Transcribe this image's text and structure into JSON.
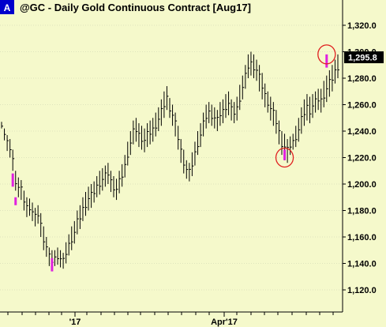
{
  "symbol_badge": "A",
  "chart_data": {
    "type": "ohlc",
    "title": "@GC - Daily  Gold Continuous Contract [Aug17]",
    "xlabels": [
      "'17",
      "Apr'17"
    ],
    "ylim": [
      1105,
      1330
    ],
    "yticks": [
      1120,
      1140,
      1160,
      1180,
      1200,
      1220,
      1240,
      1260,
      1280,
      1300,
      1320
    ],
    "ytick_labels": [
      "1,120.0",
      "1,140.0",
      "1,160.0",
      "1,180.0",
      "1,200.0",
      "1,220.0",
      "1,240.0",
      "1,260.0",
      "1,280.0",
      "1,300.0",
      "1,320.0"
    ],
    "last_price": 1295.8,
    "last_price_label": "1,295.8",
    "series": [
      {
        "points": [
          [
            1242,
            1247
          ],
          [
            1233,
            1242
          ],
          [
            1225,
            1237
          ],
          [
            1220,
            1234
          ],
          [
            1210,
            1226
          ],
          [
            1195,
            1210
          ],
          [
            1190,
            1205
          ],
          [
            1188,
            1203
          ],
          [
            1180,
            1195
          ],
          [
            1175,
            1190
          ],
          [
            1176,
            1189
          ],
          [
            1172,
            1186
          ],
          [
            1168,
            1182
          ],
          [
            1170,
            1184
          ],
          [
            1160,
            1178
          ],
          [
            1150,
            1168
          ],
          [
            1145,
            1160
          ],
          [
            1138,
            1152
          ],
          [
            1134,
            1150
          ],
          [
            1138,
            1150
          ],
          [
            1139,
            1152
          ],
          [
            1137,
            1150
          ],
          [
            1136,
            1148
          ],
          [
            1140,
            1156
          ],
          [
            1146,
            1162
          ],
          [
            1150,
            1168
          ],
          [
            1155,
            1172
          ],
          [
            1162,
            1180
          ],
          [
            1166,
            1184
          ],
          [
            1172,
            1190
          ],
          [
            1176,
            1194
          ],
          [
            1180,
            1198
          ],
          [
            1182,
            1200
          ],
          [
            1186,
            1202
          ],
          [
            1190,
            1206
          ],
          [
            1192,
            1210
          ],
          [
            1195,
            1212
          ],
          [
            1198,
            1214
          ],
          [
            1200,
            1216
          ],
          [
            1194,
            1210
          ],
          [
            1190,
            1206
          ],
          [
            1188,
            1204
          ],
          [
            1193,
            1210
          ],
          [
            1198,
            1215
          ],
          [
            1205,
            1222
          ],
          [
            1214,
            1232
          ],
          [
            1222,
            1240
          ],
          [
            1230,
            1248
          ],
          [
            1232,
            1250
          ],
          [
            1228,
            1246
          ],
          [
            1226,
            1244
          ],
          [
            1224,
            1242
          ],
          [
            1228,
            1246
          ],
          [
            1230,
            1248
          ],
          [
            1232,
            1250
          ],
          [
            1236,
            1254
          ],
          [
            1240,
            1258
          ],
          [
            1244,
            1264
          ],
          [
            1250,
            1270
          ],
          [
            1256,
            1274
          ],
          [
            1250,
            1265
          ],
          [
            1244,
            1260
          ],
          [
            1236,
            1254
          ],
          [
            1226,
            1244
          ],
          [
            1216,
            1234
          ],
          [
            1208,
            1226
          ],
          [
            1204,
            1218
          ],
          [
            1202,
            1216
          ],
          [
            1206,
            1224
          ],
          [
            1214,
            1232
          ],
          [
            1222,
            1240
          ],
          [
            1228,
            1246
          ],
          [
            1236,
            1254
          ],
          [
            1242,
            1260
          ],
          [
            1246,
            1262
          ],
          [
            1244,
            1260
          ],
          [
            1242,
            1258
          ],
          [
            1240,
            1256
          ],
          [
            1244,
            1262
          ],
          [
            1246,
            1264
          ],
          [
            1250,
            1268
          ],
          [
            1252,
            1270
          ],
          [
            1248,
            1264
          ],
          [
            1246,
            1262
          ],
          [
            1248,
            1266
          ],
          [
            1256,
            1275
          ],
          [
            1264,
            1282
          ],
          [
            1272,
            1290
          ],
          [
            1280,
            1298
          ],
          [
            1282,
            1300
          ],
          [
            1280,
            1298
          ],
          [
            1278,
            1294
          ],
          [
            1270,
            1290
          ],
          [
            1264,
            1284
          ],
          [
            1258,
            1276
          ],
          [
            1254,
            1270
          ],
          [
            1248,
            1266
          ],
          [
            1244,
            1262
          ],
          [
            1238,
            1256
          ],
          [
            1230,
            1248
          ],
          [
            1222,
            1240
          ],
          [
            1218,
            1238
          ],
          [
            1216,
            1234
          ],
          [
            1222,
            1236
          ],
          [
            1226,
            1238
          ],
          [
            1228,
            1244
          ],
          [
            1232,
            1250
          ],
          [
            1238,
            1258
          ],
          [
            1244,
            1264
          ],
          [
            1248,
            1268
          ],
          [
            1246,
            1266
          ],
          [
            1250,
            1268
          ],
          [
            1254,
            1270
          ],
          [
            1256,
            1272
          ],
          [
            1254,
            1272
          ],
          [
            1258,
            1278
          ],
          [
            1262,
            1282
          ],
          [
            1266,
            1286
          ],
          [
            1270,
            1290
          ],
          [
            1276,
            1294
          ],
          [
            1280,
            1298
          ]
        ]
      },
      {
        "name": "highlights",
        "color": "#E020E0",
        "bars": [
          [
            4,
            1198,
            1208
          ],
          [
            5,
            1184,
            1190
          ],
          [
            18,
            1134,
            1144
          ],
          [
            101,
            1218,
            1226
          ],
          [
            116,
            1288,
            1298
          ]
        ]
      }
    ],
    "circles": [
      {
        "bar": 101,
        "price": 1220
      },
      {
        "bar": 116,
        "price": 1298
      }
    ]
  }
}
